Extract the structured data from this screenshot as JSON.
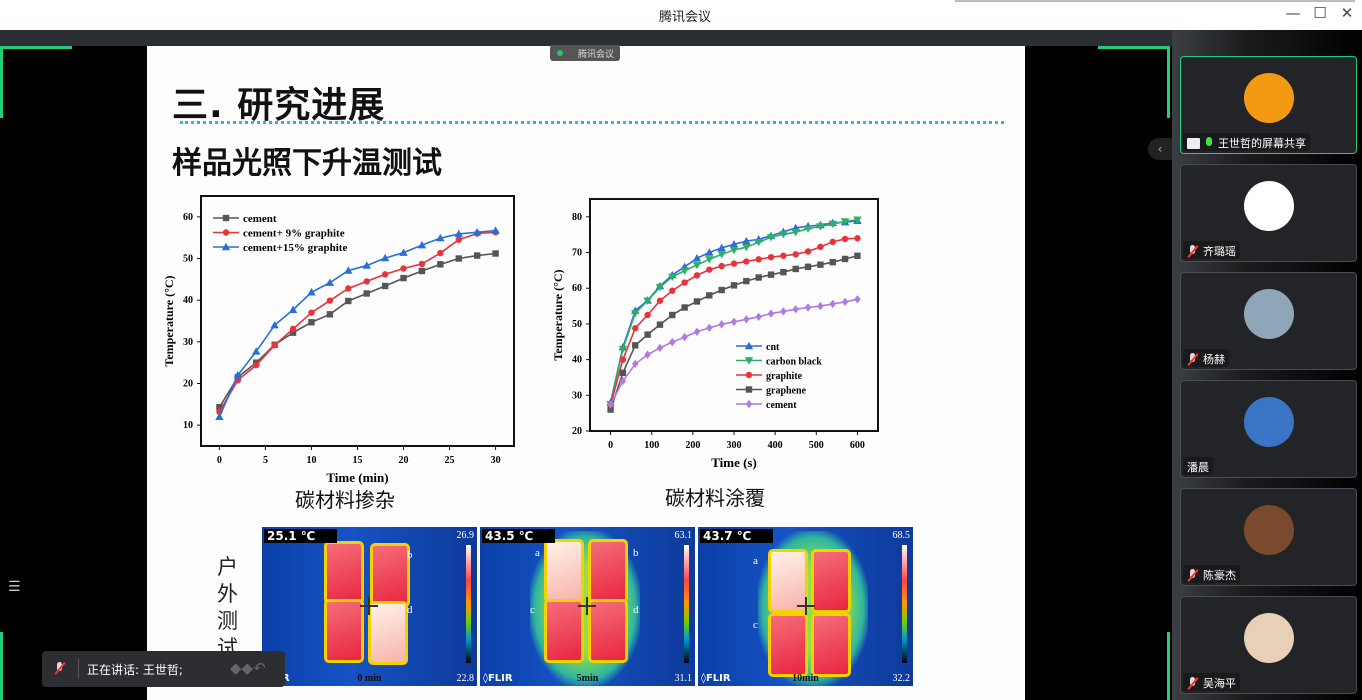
{
  "window": {
    "title": "腾讯会议",
    "minimize": "—",
    "maximize": "☐",
    "close": "✕"
  },
  "share_badge": "腾讯会议",
  "slide": {
    "title": "三. 研究进展",
    "subtitle": "样品光照下升温测试",
    "caption_left": "碳材料掺杂",
    "caption_right": "碳材料涂覆",
    "side_label": "户外测试",
    "thermal": [
      {
        "temp": "25.1 ℃",
        "max": "26.9",
        "min": "22.8",
        "time": "0 min",
        "brand": "FLIR",
        "labels": [
          "b",
          "d"
        ]
      },
      {
        "temp": "43.5 ℃",
        "max": "63.1",
        "min": "31.1",
        "time": "5min",
        "brand": "◊FLIR",
        "labels": [
          "a",
          "b",
          "c",
          "d"
        ]
      },
      {
        "temp": "43.7 ℃",
        "max": "68.5",
        "min": "32.2",
        "time": "10min",
        "brand": "◊FLIR",
        "labels": [
          "a",
          "c"
        ]
      }
    ]
  },
  "chart_data": [
    {
      "type": "line",
      "xlabel": "Time (min)",
      "ylabel": "Temperature (°C)",
      "xlim": [
        -2,
        32
      ],
      "ylim": [
        5,
        65
      ],
      "xticks": [
        0,
        5,
        10,
        15,
        20,
        25,
        30
      ],
      "yticks": [
        10,
        20,
        30,
        40,
        50,
        60
      ],
      "legend": "top-left",
      "x": [
        0,
        2,
        4,
        6,
        8,
        10,
        12,
        14,
        16,
        18,
        20,
        22,
        24,
        26,
        28,
        30
      ],
      "series": [
        {
          "name": "cement",
          "color": "#555555",
          "marker": "square",
          "values": [
            14.3,
            21.5,
            25,
            29.3,
            32.2,
            34.7,
            36.6,
            39.8,
            41.6,
            43.4,
            45.3,
            47,
            48.6,
            50,
            50.7,
            51.2
          ]
        },
        {
          "name": "cement+ 9% graphite",
          "color": "#e8333a",
          "marker": "circle",
          "values": [
            13.2,
            20.8,
            24.4,
            29.2,
            33.1,
            37,
            39.9,
            42.8,
            44.5,
            46.2,
            47.6,
            48.7,
            51.3,
            54.5,
            56,
            56.3
          ]
        },
        {
          "name": "cement+15% graphite",
          "color": "#2a6fd6",
          "marker": "triangle",
          "values": [
            12,
            22,
            27.7,
            34,
            37.7,
            41.9,
            44.2,
            47.1,
            48.3,
            50.1,
            51.4,
            53.2,
            54.9,
            55.9,
            56.3,
            56.7
          ]
        }
      ]
    },
    {
      "type": "line",
      "xlabel": "Time (s)",
      "ylabel": "Temperature (°C)",
      "xlim": [
        -50,
        650
      ],
      "ylim": [
        20,
        85
      ],
      "xticks": [
        0,
        100,
        200,
        300,
        400,
        500,
        600
      ],
      "yticks": [
        20,
        30,
        40,
        50,
        60,
        70,
        80
      ],
      "legend": "bottom-right",
      "x": [
        0,
        30,
        60,
        90,
        120,
        150,
        180,
        210,
        240,
        270,
        300,
        330,
        360,
        390,
        420,
        450,
        480,
        510,
        540,
        570,
        600
      ],
      "series": [
        {
          "name": "cnt",
          "color": "#2a6fd6",
          "marker": "triangle",
          "values": [
            28,
            43.5,
            53.7,
            56.6,
            60.6,
            63.7,
            66,
            68.4,
            70,
            71.3,
            72.3,
            73.2,
            73.7,
            74.7,
            75.8,
            76.9,
            77.4,
            77.7,
            78.3,
            78.5,
            78.9
          ]
        },
        {
          "name": "carbon black",
          "color": "#2fae6a",
          "marker": "triangle-down",
          "values": [
            27.5,
            43,
            53,
            56.5,
            60.3,
            63.2,
            64.9,
            66.5,
            68.1,
            69.5,
            70.7,
            71.5,
            72.9,
            74.3,
            75.1,
            75.7,
            76.7,
            77.3,
            78,
            78.7,
            79.2
          ]
        },
        {
          "name": "graphite",
          "color": "#e8333a",
          "marker": "circle",
          "values": [
            27.3,
            40,
            48.8,
            52.5,
            56.5,
            59.3,
            61.6,
            63.6,
            65.2,
            66.2,
            66.9,
            67.5,
            68.1,
            68.7,
            69.1,
            69.5,
            70.3,
            71.6,
            73,
            73.8,
            74
          ]
        },
        {
          "name": "graphene",
          "color": "#555555",
          "marker": "square",
          "values": [
            26,
            36.3,
            44,
            47,
            49.8,
            52.5,
            54.6,
            56.3,
            58,
            59.5,
            60.8,
            62,
            63,
            63.8,
            64.5,
            65.4,
            66,
            66.6,
            67.3,
            68.2,
            69.1
          ]
        },
        {
          "name": "cement",
          "color": "#b27ae0",
          "marker": "diamond",
          "values": [
            27.4,
            34,
            38.8,
            41.4,
            43.3,
            44.9,
            46.3,
            47.8,
            48.9,
            49.9,
            50.6,
            51.3,
            52,
            52.9,
            53.5,
            54.1,
            54.6,
            55,
            55.6,
            56.2,
            56.9
          ]
        }
      ]
    }
  ],
  "participants": [
    {
      "name": "王世哲的屏幕共享",
      "mic": "on",
      "sharing": true,
      "avatar_color": "#f39a12",
      "active": true
    },
    {
      "name": "齐璐瑶",
      "mic": "off",
      "avatar_color": "#ffffff"
    },
    {
      "name": "杨赫",
      "mic": "off",
      "avatar_color": "#8fa6b8"
    },
    {
      "name": "潘晨",
      "mic": "none",
      "avatar_color": "#3a74c4"
    },
    {
      "name": "陈豪杰",
      "mic": "off",
      "avatar_color": "#7a4a2e"
    },
    {
      "name": "吴海平",
      "mic": "off",
      "avatar_color": "#e8cfb8"
    }
  ],
  "speaking": {
    "text": "正在讲话: 王世哲;"
  },
  "icons": {
    "collapse": "‹",
    "list": "☰",
    "logo": "◆◆↶"
  }
}
